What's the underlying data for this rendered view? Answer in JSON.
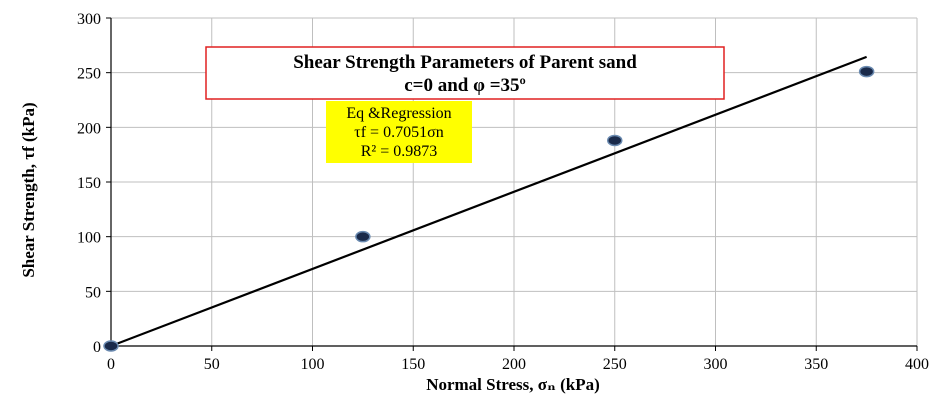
{
  "chart_data": {
    "type": "scatter",
    "title": "Shear Strength Parameters of Parent sand",
    "subtitle": "c=0 and φ =35º",
    "xlabel": "Normal Stress, σₙ (kPa)",
    "ylabel": "Shear Strength, τf (kPa)",
    "xlim": [
      0,
      400
    ],
    "ylim": [
      0,
      300
    ],
    "x_ticks": [
      0,
      50,
      100,
      150,
      200,
      250,
      300,
      350,
      400
    ],
    "y_ticks": [
      0,
      50,
      100,
      150,
      200,
      250,
      300
    ],
    "grid": true,
    "series": [
      {
        "points": [
          {
            "x": 0,
            "y": 0
          },
          {
            "x": 125,
            "y": 100
          },
          {
            "x": 250,
            "y": 188
          },
          {
            "x": 375,
            "y": 251
          }
        ]
      }
    ],
    "trendline": {
      "slope": 0.7051,
      "intercept": 0,
      "x_range": [
        0,
        375
      ]
    },
    "annotation": {
      "heading": "Eq &Regression",
      "equation": "τf = 0.7051σn",
      "r_squared": "R² = 0.9873",
      "background": "#ffff00"
    },
    "colors": {
      "title_border": "#e02020",
      "marker_fill": "#1a2a4a",
      "marker_stroke": "#6a8ab0",
      "line": "#000000",
      "grid": "#bfbfbf"
    }
  }
}
